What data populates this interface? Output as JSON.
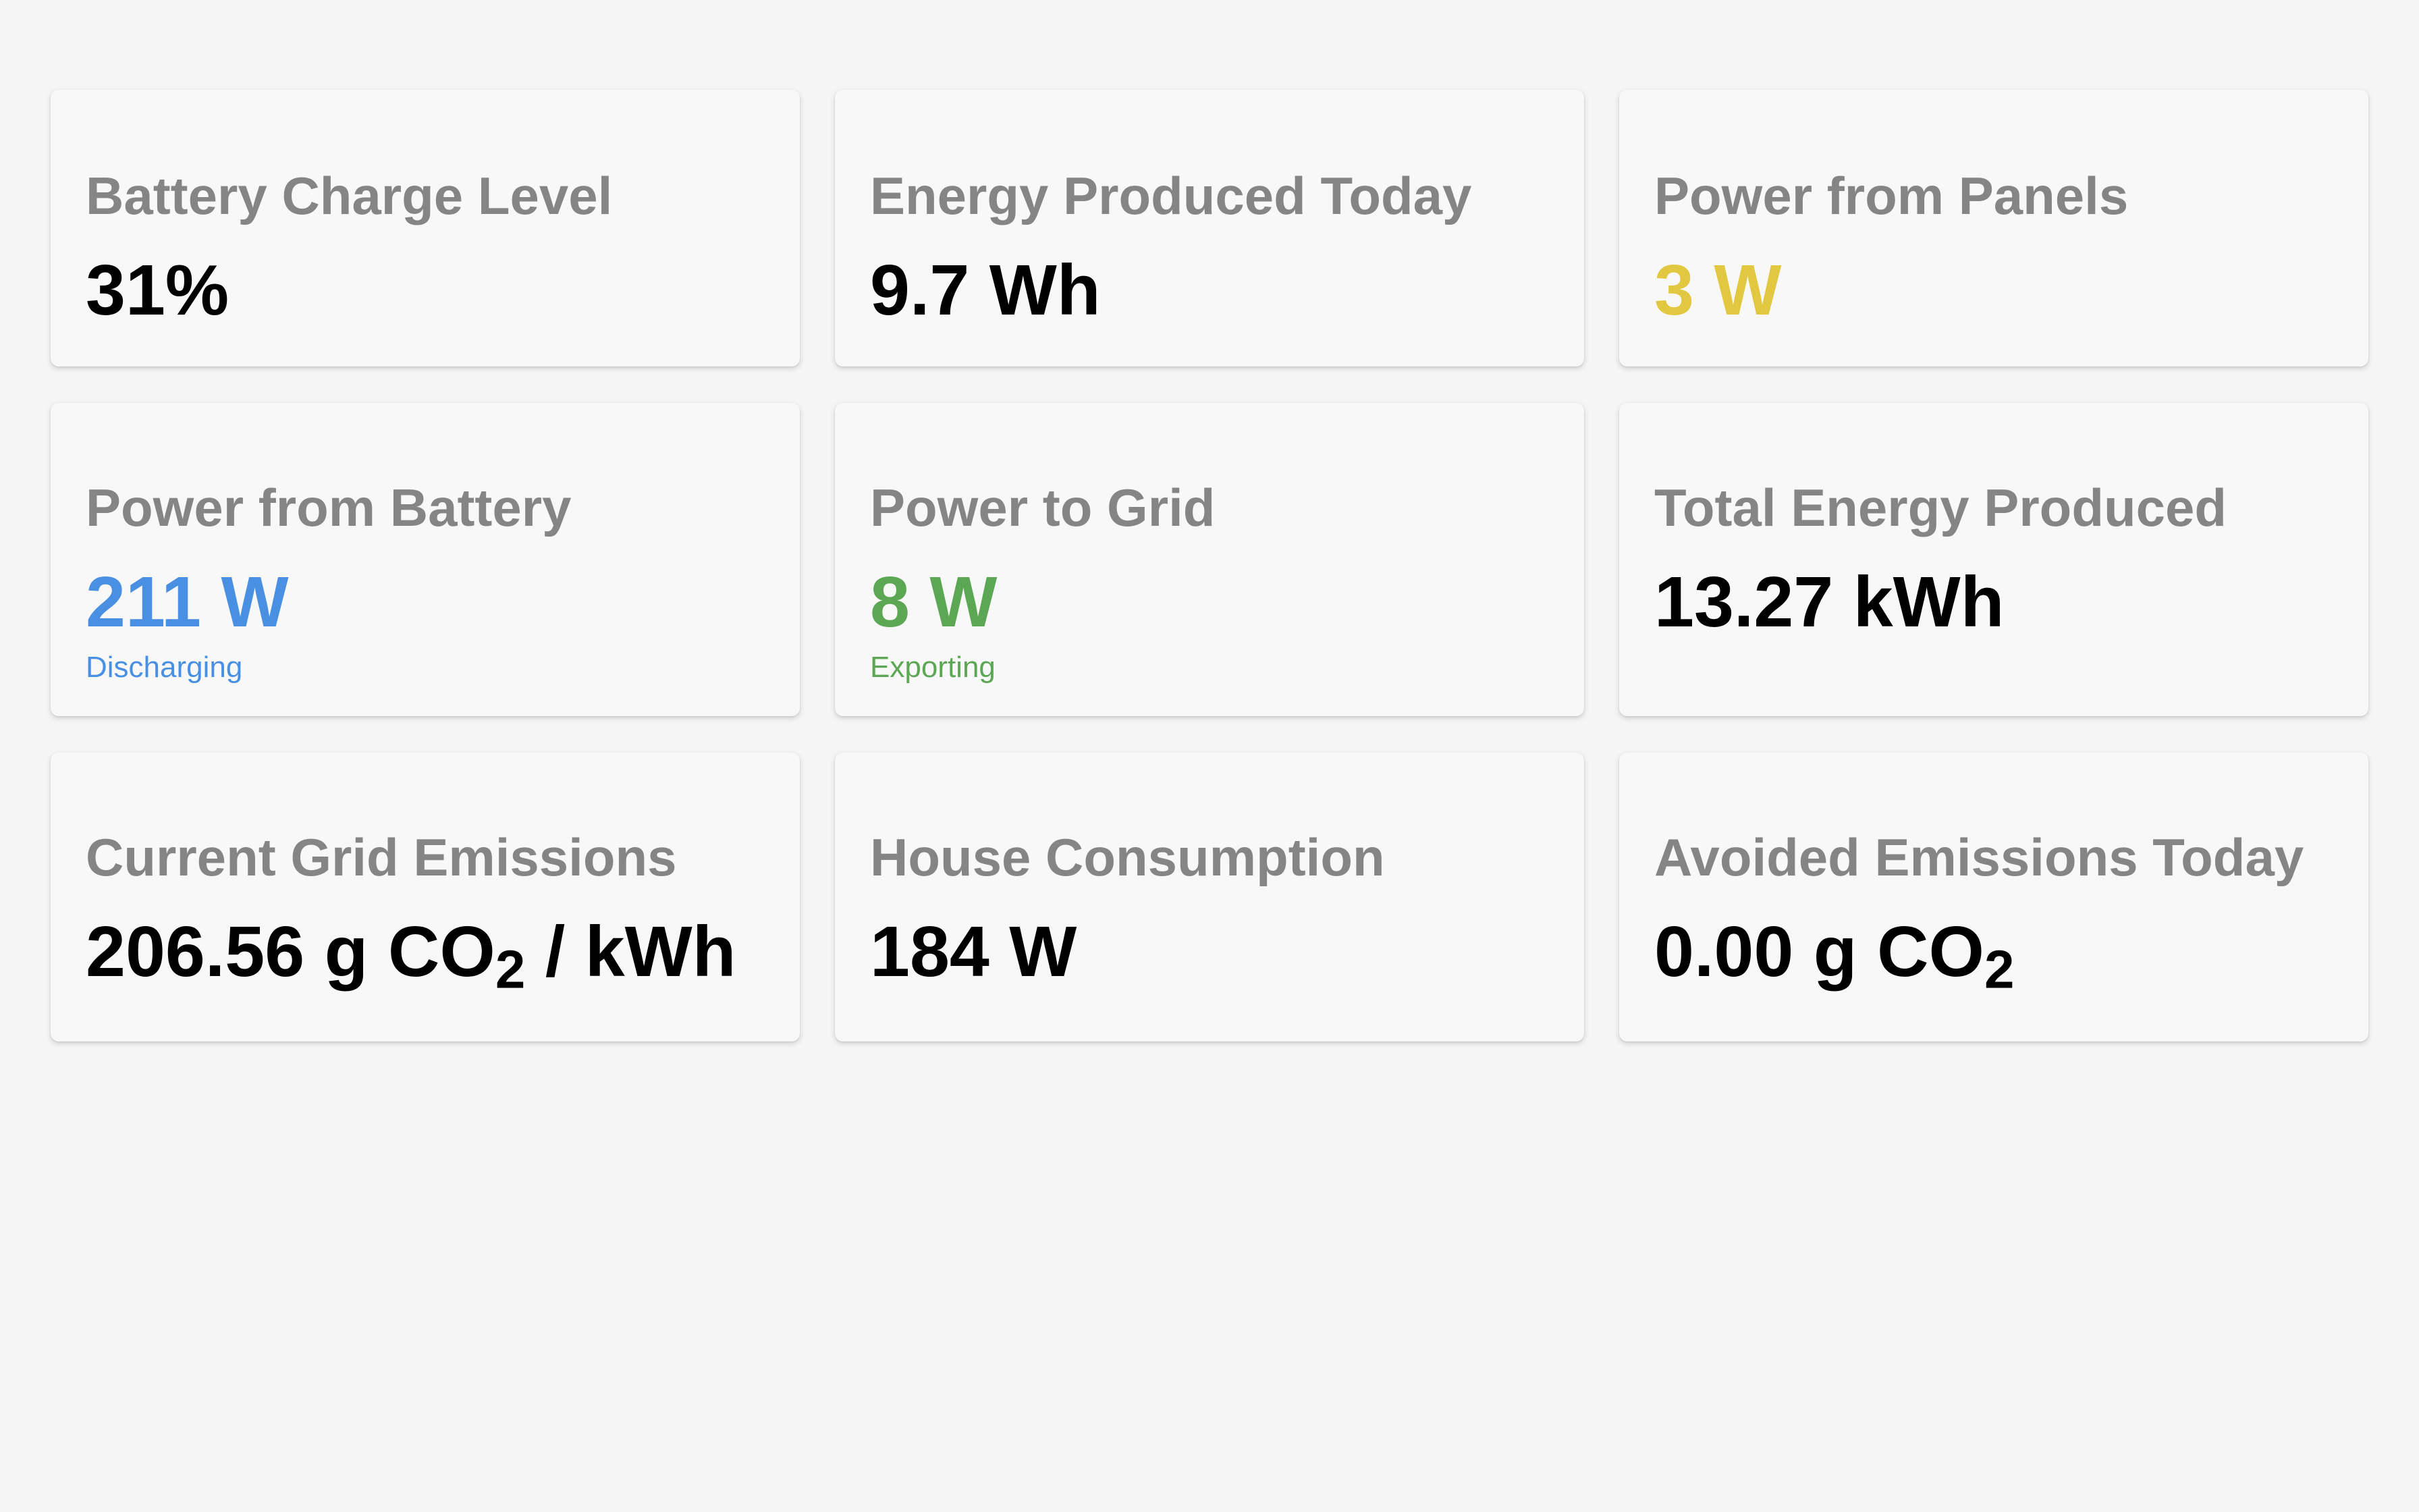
{
  "cards": [
    {
      "label": "Battery Charge Level",
      "value": "31%",
      "color": "#000000"
    },
    {
      "label": "Energy Produced Today",
      "value": "9.7 Wh",
      "color": "#000000"
    },
    {
      "label": "Power from Panels",
      "value": "3 W",
      "color": "#e2c840"
    },
    {
      "label": "Power from Battery",
      "value": "211 W",
      "status": "Discharging",
      "color": "#4a90e2"
    },
    {
      "label": "Power to Grid",
      "value": "8 W",
      "status": "Exporting",
      "color": "#5ca753"
    },
    {
      "label": "Total Energy Produced",
      "value": "13.27 kWh",
      "color": "#000000"
    },
    {
      "label": "Current Grid Emissions",
      "value_main": "206.56 g CO",
      "value_sub": "2",
      "value_tail": " / kWh",
      "color": "#000000"
    },
    {
      "label": "House Consumption",
      "value": "184 W",
      "color": "#000000"
    },
    {
      "label": "Avoided Emissions Today",
      "value_main": "0.00 g CO",
      "value_sub": "2",
      "color": "#000000"
    }
  ]
}
